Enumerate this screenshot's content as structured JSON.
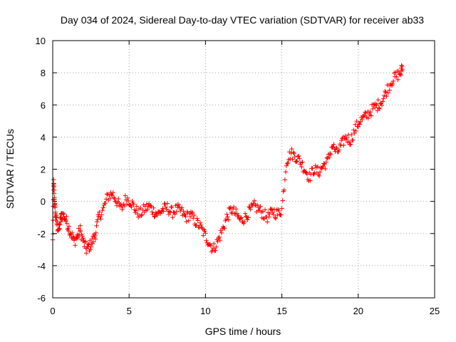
{
  "chart_data": {
    "type": "scatter",
    "title": "Day 034 of 2024, Sidereal Day-to-day VTEC variation (SDTVAR) for receiver ab33",
    "xlabel": "GPS time / hours",
    "ylabel": "SDTVAR / TECUs",
    "xlim": [
      0,
      25
    ],
    "ylim": [
      -6,
      10
    ],
    "xticks": [
      0,
      5,
      10,
      15,
      20,
      25
    ],
    "yticks": [
      -6,
      -4,
      -2,
      0,
      2,
      4,
      6,
      8,
      10
    ],
    "grid": true,
    "marker": "+",
    "series": [
      {
        "name": "SDTVAR",
        "color": "#ff0000",
        "anchors_x": [
          0.0,
          0.05,
          0.1,
          0.15,
          0.2,
          0.3,
          0.4,
          0.5,
          0.6,
          0.8,
          1.0,
          1.2,
          1.4,
          1.6,
          1.8,
          2.0,
          2.2,
          2.4,
          2.6,
          2.8,
          3.0,
          3.3,
          3.6,
          3.9,
          4.2,
          4.5,
          4.8,
          5.1,
          5.4,
          5.7,
          6.0,
          6.3,
          6.6,
          6.9,
          7.2,
          7.5,
          7.8,
          8.1,
          8.4,
          8.7,
          9.0,
          9.3,
          9.6,
          9.9,
          10.2,
          10.5,
          10.8,
          11.1,
          11.4,
          11.7,
          12.0,
          12.3,
          12.6,
          12.9,
          13.2,
          13.5,
          13.8,
          14.1,
          14.4,
          14.7,
          15.0,
          15.3,
          15.6,
          15.9,
          16.2,
          16.5,
          16.8,
          17.1,
          17.4,
          17.7,
          18.0,
          18.3,
          18.6,
          18.9,
          19.2,
          19.5,
          19.8,
          20.1,
          20.4,
          20.7,
          21.0,
          21.3,
          21.6,
          21.9,
          22.2,
          22.5,
          22.8,
          22.9
        ],
        "anchors_y": [
          -2.5,
          1.2,
          0.5,
          -0.5,
          -1.0,
          -1.5,
          -1.8,
          -1.2,
          -0.8,
          -1.0,
          -1.5,
          -2.0,
          -2.5,
          -2.2,
          -1.8,
          -2.5,
          -3.0,
          -2.8,
          -2.5,
          -2.0,
          -1.0,
          -0.5,
          0.3,
          0.5,
          0.0,
          -0.5,
          0.2,
          0.0,
          -0.5,
          -0.8,
          -0.5,
          -0.3,
          -0.6,
          -0.8,
          -0.5,
          -0.4,
          -0.7,
          -0.5,
          -0.6,
          -1.0,
          -0.8,
          -1.2,
          -1.5,
          -2.0,
          -2.5,
          -3.0,
          -2.5,
          -1.8,
          -1.0,
          -0.5,
          -0.8,
          -1.2,
          -1.0,
          -0.6,
          -0.3,
          -0.5,
          -0.8,
          -1.0,
          -0.6,
          -0.8,
          -0.5,
          2.5,
          3.0,
          2.8,
          2.5,
          2.0,
          1.5,
          2.0,
          1.8,
          2.2,
          2.5,
          3.5,
          3.0,
          3.5,
          4.0,
          3.8,
          4.5,
          5.0,
          5.2,
          5.5,
          5.8,
          6.0,
          6.3,
          7.0,
          7.5,
          7.8,
          8.0,
          8.5
        ]
      }
    ]
  }
}
